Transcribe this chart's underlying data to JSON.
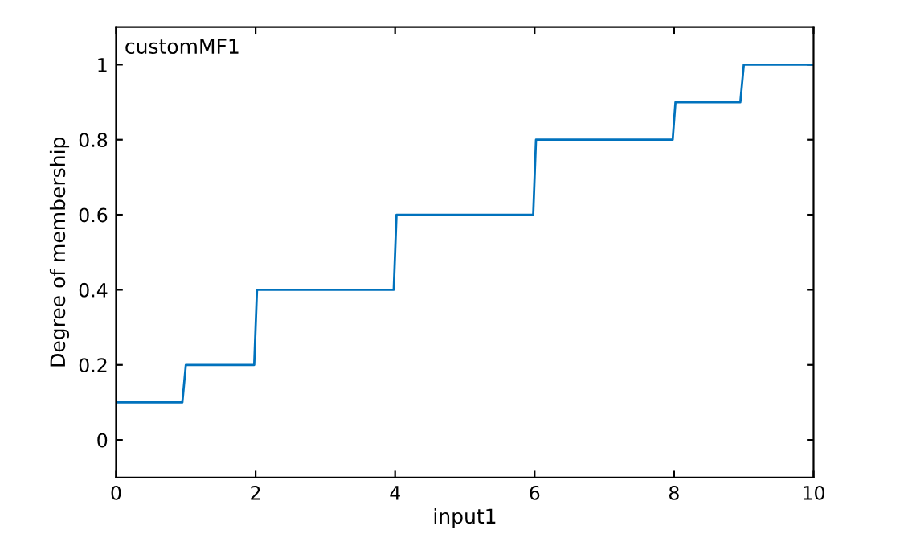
{
  "chart_data": {
    "type": "line",
    "xlabel": "input1",
    "ylabel": "Degree of membership",
    "annotations": [
      "customMF1"
    ],
    "x": [
      0,
      0.95,
      1.0,
      1.98,
      2.02,
      3.98,
      4.02,
      5.98,
      6.02,
      7.98,
      8.02,
      8.95,
      9.0,
      10
    ],
    "series": [
      {
        "color": "#0072bd",
        "values": [
          0.1,
          0.1,
          0.2,
          0.2,
          0.4,
          0.4,
          0.6,
          0.6,
          0.8,
          0.8,
          0.9,
          0.9,
          1.0,
          1.0
        ]
      }
    ],
    "xlim": [
      0,
      10
    ],
    "ylim": [
      -0.1,
      1.1
    ],
    "xticks": [
      0,
      2,
      4,
      6,
      8,
      10
    ],
    "yticks": [
      0,
      0.2,
      0.4,
      0.6,
      0.8,
      1
    ],
    "grid": false,
    "legend": false,
    "marker": "none",
    "line_style": "solid"
  }
}
